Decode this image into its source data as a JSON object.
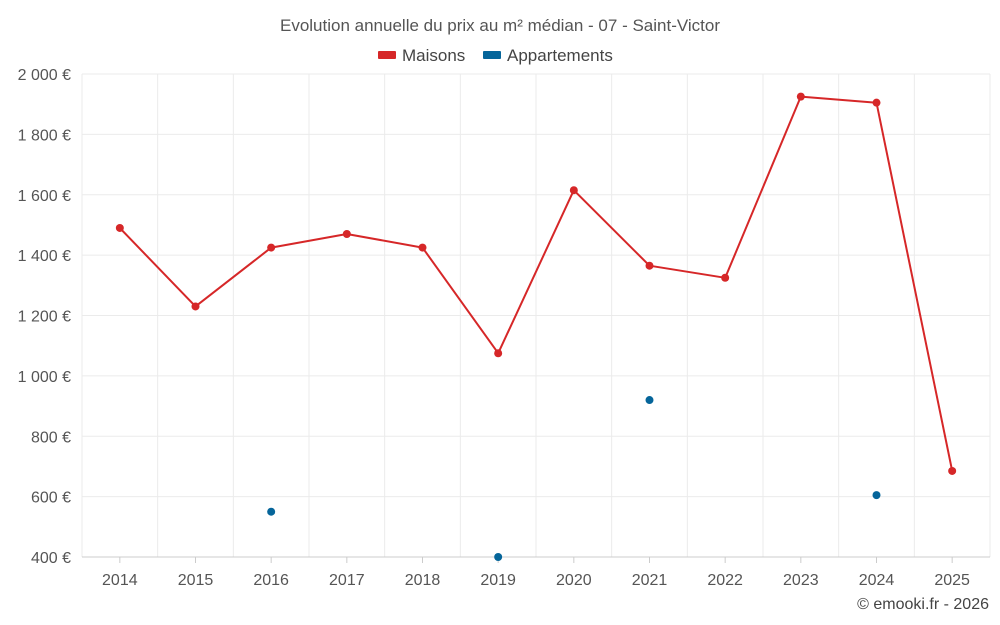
{
  "chart_data": {
    "type": "line",
    "title": "Evolution annuelle du prix au m² médian - 07 - Saint-Victor",
    "categories": [
      "2014",
      "2015",
      "2016",
      "2017",
      "2018",
      "2019",
      "2020",
      "2021",
      "2022",
      "2023",
      "2024",
      "2025"
    ],
    "ylim": [
      400,
      2000
    ],
    "y_ticks": [
      400,
      600,
      800,
      1000,
      1200,
      1400,
      1600,
      1800,
      2000
    ],
    "y_tick_labels": [
      "400 €",
      "600 €",
      "800 €",
      "1 000 €",
      "1 200 €",
      "1 400 €",
      "1 600 €",
      "1 800 €",
      "2 000 €"
    ],
    "grid": true,
    "legend_position": "top-center",
    "series": [
      {
        "name": "Maisons",
        "color": "#d62728",
        "values": [
          1490,
          1230,
          1425,
          1470,
          1425,
          1075,
          1615,
          1365,
          1325,
          1925,
          1905,
          685
        ]
      },
      {
        "name": "Appartements",
        "color": "#05659a",
        "values": [
          null,
          null,
          550,
          null,
          null,
          400,
          null,
          920,
          null,
          null,
          605,
          null
        ]
      }
    ],
    "credit": "© emooki.fr - 2026"
  }
}
